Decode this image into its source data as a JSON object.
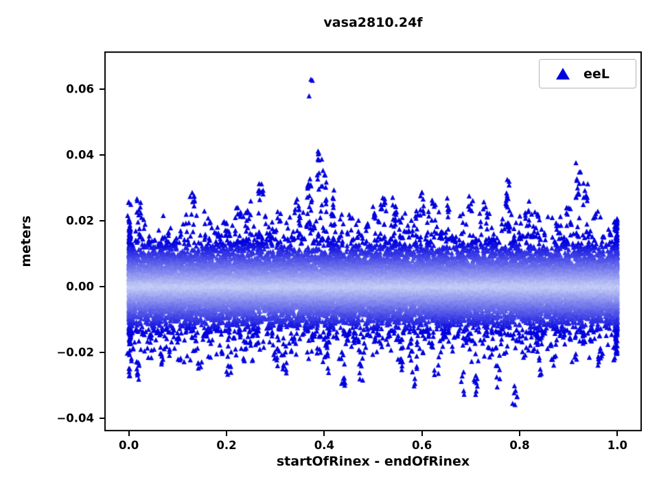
{
  "figure": {
    "background": "#ffffff",
    "border_color": "#000000"
  },
  "chart_data": {
    "type": "scatter",
    "title": "vasa2810.24f",
    "xlabel": "startOfRinex - endOfRinex",
    "ylabel": "meters",
    "xlim": [
      -0.05,
      1.05
    ],
    "ylim": [
      -0.044,
      0.0715
    ],
    "grid": false,
    "xticks": {
      "values": [
        0.0,
        0.2,
        0.4,
        0.6,
        0.8,
        1.0
      ],
      "labels": [
        "0.0",
        "0.2",
        "0.4",
        "0.6",
        "0.8",
        "1.0"
      ]
    },
    "yticks": {
      "values": [
        -0.04,
        -0.02,
        0.0,
        0.02,
        0.04,
        0.06
      ],
      "labels": [
        "−0.04",
        "−0.02",
        "0.00",
        "0.02",
        "0.04",
        "0.06"
      ]
    },
    "legend": {
      "position": "upper right",
      "entries": [
        {
          "label": "eeL",
          "marker": "triangle_up",
          "color": "#0000dd"
        }
      ]
    },
    "series": [
      {
        "name": "eeL",
        "marker": "triangle_up",
        "marker_size_px": 8,
        "color": "#0202de",
        "color_core_pale": "#c6cef6",
        "cloud": {
          "n": 16000,
          "x_range": [
            0.0,
            1.0
          ],
          "y_mean": 0.0,
          "y_sigmas": [
            0.006,
            0.0085,
            0.012
          ],
          "sigma_weights": [
            0.7,
            0.23,
            0.07
          ],
          "y_clip": 0.023
        },
        "edge_columns": [
          {
            "x": 0.002,
            "n": 450,
            "sigma": 0.0095
          },
          {
            "x": 0.998,
            "n": 450,
            "sigma": 0.0095
          }
        ],
        "outlier_clusters_format": [
          "x",
          "y_min",
          "y_max",
          "n"
        ],
        "outlier_clusters": [
          [
            0.0,
            0.02,
            0.026,
            6
          ],
          [
            0.0,
            -0.028,
            -0.02,
            6
          ],
          [
            0.02,
            0.021,
            0.027,
            8
          ],
          [
            0.02,
            -0.029,
            -0.023,
            8
          ],
          [
            0.065,
            -0.025,
            -0.02,
            5
          ],
          [
            0.13,
            0.024,
            0.029,
            8
          ],
          [
            0.145,
            -0.026,
            -0.021,
            5
          ],
          [
            0.205,
            -0.027,
            -0.021,
            6
          ],
          [
            0.225,
            0.02,
            0.024,
            6
          ],
          [
            0.245,
            0.021,
            0.026,
            5
          ],
          [
            0.27,
            0.026,
            0.032,
            9
          ],
          [
            0.3,
            -0.026,
            -0.02,
            5
          ],
          [
            0.32,
            -0.028,
            -0.022,
            6
          ],
          [
            0.345,
            0.02,
            0.027,
            8
          ],
          [
            0.37,
            0.022,
            0.033,
            14
          ],
          [
            0.372,
            0.057,
            0.065,
            3
          ],
          [
            0.39,
            0.028,
            0.043,
            12
          ],
          [
            0.4,
            0.024,
            0.036,
            10
          ],
          [
            0.405,
            -0.027,
            -0.021,
            5
          ],
          [
            0.415,
            0.02,
            0.03,
            8
          ],
          [
            0.44,
            -0.031,
            -0.023,
            8
          ],
          [
            0.475,
            -0.03,
            -0.023,
            6
          ],
          [
            0.5,
            0.021,
            0.027,
            6
          ],
          [
            0.52,
            0.022,
            0.028,
            8
          ],
          [
            0.545,
            0.022,
            0.028,
            6
          ],
          [
            0.555,
            -0.028,
            -0.021,
            5
          ],
          [
            0.585,
            -0.031,
            -0.024,
            6
          ],
          [
            0.6,
            0.022,
            0.029,
            8
          ],
          [
            0.625,
            0.02,
            0.027,
            7
          ],
          [
            0.63,
            -0.027,
            -0.021,
            5
          ],
          [
            0.655,
            0.022,
            0.027,
            5
          ],
          [
            0.685,
            -0.033,
            -0.026,
            5
          ],
          [
            0.7,
            0.022,
            0.028,
            7
          ],
          [
            0.71,
            -0.034,
            -0.025,
            8
          ],
          [
            0.73,
            0.02,
            0.026,
            5
          ],
          [
            0.755,
            -0.031,
            -0.024,
            6
          ],
          [
            0.775,
            0.024,
            0.033,
            12
          ],
          [
            0.79,
            -0.037,
            -0.028,
            7
          ],
          [
            0.815,
            0.02,
            0.026,
            6
          ],
          [
            0.845,
            -0.027,
            -0.021,
            5
          ],
          [
            0.87,
            -0.026,
            -0.02,
            5
          ],
          [
            0.9,
            0.021,
            0.027,
            6
          ],
          [
            0.92,
            0.026,
            0.039,
            12
          ],
          [
            0.935,
            0.022,
            0.032,
            9
          ],
          [
            0.965,
            -0.025,
            -0.02,
            5
          ],
          [
            0.995,
            0.017,
            0.021,
            4
          ],
          [
            0.995,
            -0.023,
            -0.018,
            5
          ]
        ]
      }
    ]
  }
}
